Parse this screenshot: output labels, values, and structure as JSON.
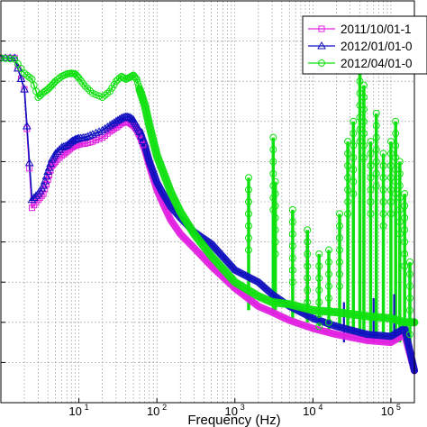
{
  "chart_data": {
    "type": "line",
    "xlabel": "Frequency (Hz)",
    "x_scale": "log",
    "xlim": [
      1,
      200000
    ],
    "ylim": [
      0,
      1
    ],
    "grid": true,
    "legend_position": "top-right",
    "x_ticks": [
      {
        "base": "10",
        "exp": "1",
        "value": 10
      },
      {
        "base": "10",
        "exp": "2",
        "value": 100
      },
      {
        "base": "10",
        "exp": "3",
        "value": 1000
      },
      {
        "base": "10",
        "exp": "4",
        "value": 10000
      },
      {
        "base": "10",
        "exp": "5",
        "value": 100000
      }
    ],
    "y_ticks": [
      0.1,
      0.2,
      0.3,
      0.4,
      0.5,
      0.6,
      0.7,
      0.8,
      0.9
    ],
    "series": [
      {
        "name": "2011/10/01-1",
        "color": "#e020e0",
        "marker": "square",
        "x": [
          1,
          1.5,
          2,
          2.5,
          3,
          3.5,
          4,
          4.5,
          5,
          6,
          7,
          8,
          9,
          10,
          12,
          15,
          20,
          25,
          30,
          35,
          40,
          45,
          50,
          55,
          60,
          70,
          80,
          100,
          120,
          150,
          200,
          300,
          500,
          1000,
          2000,
          3000,
          5000,
          10000,
          20000,
          50000,
          100000,
          150000,
          200000
        ],
        "y": [
          0.858,
          0.858,
          0.78,
          0.485,
          0.505,
          0.52,
          0.555,
          0.59,
          0.6,
          0.615,
          0.625,
          0.635,
          0.64,
          0.643,
          0.645,
          0.65,
          0.66,
          0.675,
          0.685,
          0.695,
          0.7,
          0.696,
          0.69,
          0.68,
          0.665,
          0.63,
          0.59,
          0.53,
          0.495,
          0.455,
          0.42,
          0.385,
          0.34,
          0.285,
          0.24,
          0.225,
          0.205,
          0.185,
          0.17,
          0.155,
          0.15,
          0.17,
          0.08
        ]
      },
      {
        "name": "2012/01/01-0",
        "color": "#1010c0",
        "marker": "triangle",
        "x": [
          1,
          1.5,
          2,
          2.5,
          3,
          3.5,
          4,
          4.5,
          5,
          6,
          7,
          8,
          9,
          10,
          12,
          15,
          20,
          25,
          30,
          35,
          40,
          45,
          50,
          55,
          60,
          70,
          80,
          100,
          120,
          150,
          200,
          300,
          500,
          1000,
          2000,
          3000,
          5000,
          10000,
          20000,
          50000,
          100000,
          150000,
          200000
        ],
        "y": [
          0.858,
          0.858,
          0.78,
          0.505,
          0.52,
          0.54,
          0.575,
          0.605,
          0.62,
          0.635,
          0.64,
          0.65,
          0.655,
          0.658,
          0.66,
          0.668,
          0.678,
          0.69,
          0.7,
          0.708,
          0.712,
          0.71,
          0.704,
          0.69,
          0.675,
          0.64,
          0.6,
          0.548,
          0.52,
          0.488,
          0.46,
          0.425,
          0.395,
          0.33,
          0.3,
          0.27,
          0.24,
          0.21,
          0.19,
          0.17,
          0.165,
          0.185,
          0.08
        ]
      },
      {
        "name": "2012/04/01-0",
        "color": "#10e010",
        "marker": "circle",
        "x": [
          1,
          1.5,
          2,
          2.5,
          3,
          3.5,
          4,
          4.5,
          5,
          6,
          7,
          8,
          9,
          10,
          12,
          15,
          20,
          25,
          30,
          35,
          40,
          45,
          50,
          55,
          60,
          70,
          80,
          100,
          120,
          150,
          200,
          300,
          500,
          1000,
          2000,
          3000,
          5000,
          10000,
          20000,
          50000,
          100000,
          150000,
          200000
        ],
        "y": [
          0.858,
          0.855,
          0.82,
          0.805,
          0.76,
          0.772,
          0.78,
          0.79,
          0.8,
          0.812,
          0.818,
          0.82,
          0.818,
          0.808,
          0.788,
          0.77,
          0.76,
          0.775,
          0.8,
          0.812,
          0.805,
          0.81,
          0.815,
          0.805,
          0.78,
          0.74,
          0.69,
          0.615,
          0.575,
          0.525,
          0.475,
          0.42,
          0.365,
          0.3,
          0.265,
          0.25,
          0.245,
          0.23,
          0.225,
          0.215,
          0.21,
          0.2,
          0.2
        ]
      }
    ],
    "spikes": [
      {
        "x": 1500,
        "y_top": 0.56,
        "y_bot": 0.23,
        "series": 2
      },
      {
        "x": 3100,
        "y_top": 0.66,
        "y_bot": 0.22,
        "series": 2
      },
      {
        "x": 3300,
        "y_top": 0.55,
        "y_bot": 0.23,
        "series": 2
      },
      {
        "x": 5500,
        "y_top": 0.48,
        "y_bot": 0.21,
        "series": 2
      },
      {
        "x": 8500,
        "y_top": 0.43,
        "y_bot": 0.2,
        "series": 2
      },
      {
        "x": 12000,
        "y_top": 0.37,
        "y_bot": 0.19,
        "series": 2
      },
      {
        "x": 16000,
        "y_top": 0.38,
        "y_bot": 0.18,
        "series": 2
      },
      {
        "x": 22000,
        "y_top": 0.47,
        "y_bot": 0.18,
        "series": 2
      },
      {
        "x": 28000,
        "y_top": 0.65,
        "y_bot": 0.17,
        "series": 2
      },
      {
        "x": 33000,
        "y_top": 0.7,
        "y_bot": 0.17,
        "series": 2
      },
      {
        "x": 40000,
        "y_top": 0.83,
        "y_bot": 0.17,
        "series": 2
      },
      {
        "x": 45000,
        "y_top": 0.79,
        "y_bot": 0.17,
        "series": 2
      },
      {
        "x": 55000,
        "y_top": 0.65,
        "y_bot": 0.16,
        "series": 2
      },
      {
        "x": 65000,
        "y_top": 0.72,
        "y_bot": 0.16,
        "series": 2
      },
      {
        "x": 80000,
        "y_top": 0.62,
        "y_bot": 0.16,
        "series": 2
      },
      {
        "x": 100000,
        "y_top": 0.65,
        "y_bot": 0.16,
        "series": 2
      },
      {
        "x": 115000,
        "y_top": 0.7,
        "y_bot": 0.15,
        "series": 2
      },
      {
        "x": 130000,
        "y_top": 0.6,
        "y_bot": 0.15,
        "series": 2
      },
      {
        "x": 150000,
        "y_top": 0.52,
        "y_bot": 0.15,
        "series": 2
      },
      {
        "x": 175000,
        "y_top": 0.35,
        "y_bot": 0.12,
        "series": 2
      },
      {
        "x": 25000,
        "y_top": 0.25,
        "y_bot": 0.15,
        "series": 1
      },
      {
        "x": 60000,
        "y_top": 0.26,
        "y_bot": 0.15,
        "series": 1
      },
      {
        "x": 110000,
        "y_top": 0.27,
        "y_bot": 0.15,
        "series": 1
      }
    ]
  }
}
